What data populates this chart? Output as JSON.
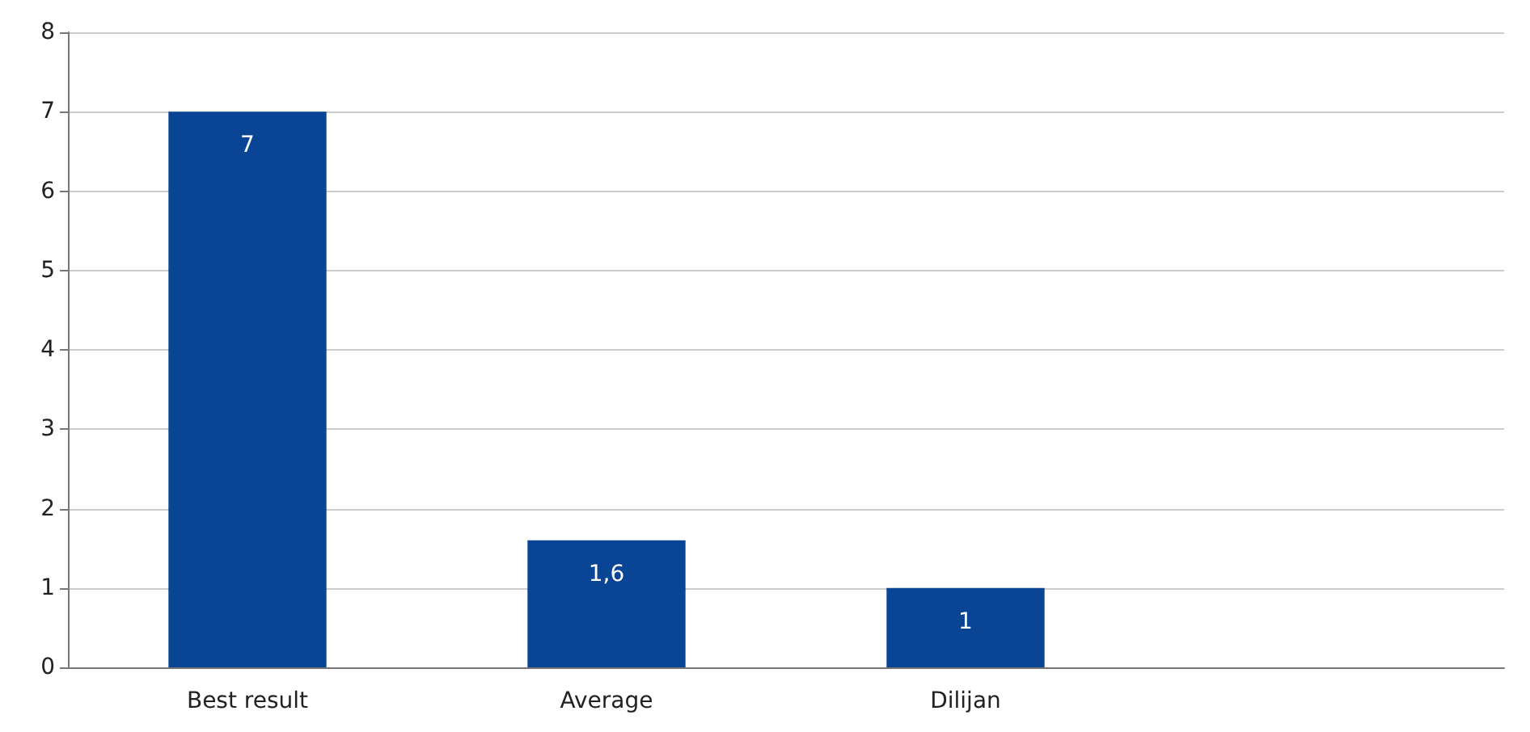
{
  "chart_data": {
    "type": "bar",
    "categories": [
      "Best result",
      "Average",
      "Dilijan",
      null
    ],
    "values": [
      7,
      1.6,
      1,
      null
    ],
    "value_labels": [
      "7",
      "1,6",
      "1",
      null
    ],
    "color": "#0a4595",
    "ylim": [
      0,
      8
    ],
    "yticks": [
      0,
      1,
      2,
      3,
      4,
      5,
      6,
      7,
      8
    ],
    "grid": "y"
  }
}
